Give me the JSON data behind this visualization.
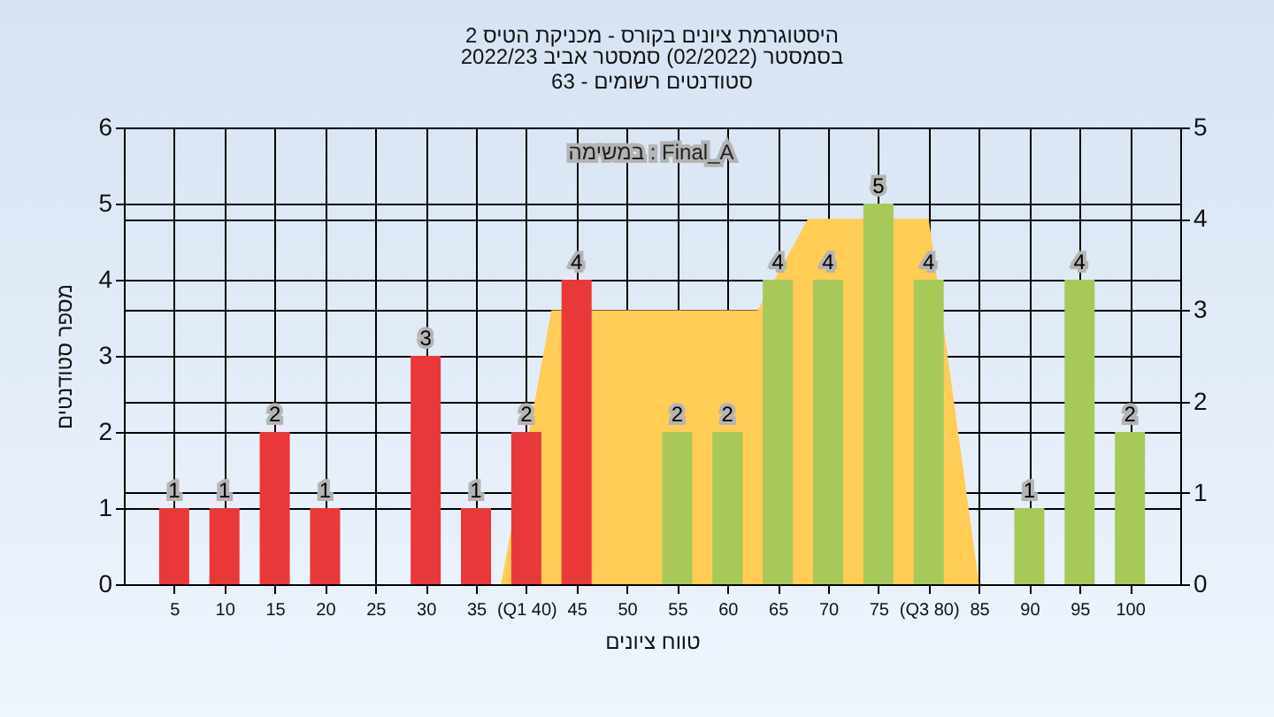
{
  "chart_data": {
    "type": "bar",
    "title": "היסטוגרמת ציונים בקורס - מכניקת הטיס 2",
    "subtitle": "בסמסטר  (02/2022)  סמסטר אביב 2022/23\nסטודנטים רשומים - 63",
    "xlabel": "טווח ציונים",
    "ylabel": "מספר סטודנטים",
    "annotations": [
      "במשימה : Final_A"
    ],
    "x": [
      5,
      10,
      15,
      20,
      25,
      30,
      35,
      40,
      45,
      50,
      55,
      60,
      65,
      70,
      75,
      80,
      85,
      90,
      95,
      100
    ],
    "xlim": [
      0,
      105
    ],
    "xticks": [
      5,
      10,
      15,
      20,
      25,
      30,
      35,
      {
        "value": 40,
        "label": "(Q1 40)"
      },
      45,
      50,
      55,
      60,
      65,
      70,
      75,
      {
        "value": 80,
        "label": "(Q3 80)"
      },
      85,
      90,
      95,
      100
    ],
    "ylim": [
      0,
      6
    ],
    "yticks": [
      0,
      1,
      2,
      3,
      4,
      5,
      6
    ],
    "y2lim": [
      0,
      5
    ],
    "y2ticks": [
      0,
      1,
      2,
      3,
      4,
      5
    ],
    "series": [
      {
        "type": "area",
        "axis": "y2",
        "color": "#ffcc55",
        "x": [
          37.5,
          42.5,
          63,
          68,
          80,
          85
        ],
        "values": [
          0,
          3,
          3,
          4,
          4,
          0
        ]
      },
      {
        "values": [
          1,
          1,
          2,
          1,
          null,
          3,
          1,
          2,
          4,
          null,
          2,
          2,
          4,
          4,
          5,
          4,
          null,
          1,
          4,
          2
        ],
        "value_labels": [
          "1",
          "1",
          "2",
          "1",
          null,
          "3",
          "1",
          "2",
          "4",
          null,
          "2",
          "2",
          "4",
          "4",
          "5",
          "4",
          null,
          "1",
          "4",
          "2"
        ],
        "colors": [
          "#e8383a",
          "#e8383a",
          "#e8383a",
          "#e8383a",
          "#e8383a",
          "#e8383a",
          "#e8383a",
          "#e8383a",
          "#e8383a",
          "#a6c95a",
          "#a6c95a",
          "#a6c95a",
          "#a6c95a",
          "#a6c95a",
          "#a6c95a",
          "#a6c95a",
          "#a6c95a",
          "#a6c95a",
          "#a6c95a",
          "#a6c95a"
        ]
      }
    ],
    "grid": true
  }
}
